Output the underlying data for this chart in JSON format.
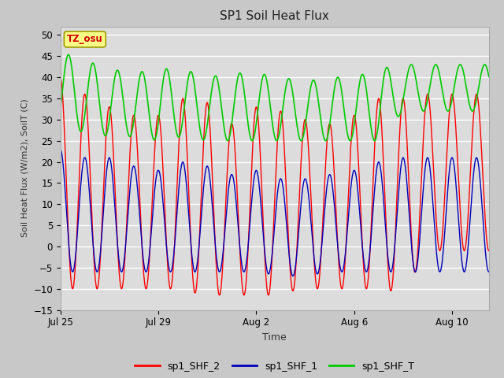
{
  "title": "SP1 Soil Heat Flux",
  "xlabel": "Time",
  "ylabel": "Soil Heat Flux (W/m2), SoilT (C)",
  "ylim": [
    -15,
    52
  ],
  "yticks": [
    -15,
    -10,
    -5,
    0,
    5,
    10,
    15,
    20,
    25,
    30,
    35,
    40,
    45,
    50
  ],
  "fig_bg": "#c8c8c8",
  "plot_bg": "#dcdcdc",
  "grid_color": "#ffffff",
  "line_colors": [
    "#ff0000",
    "#0000bb",
    "#00cc00"
  ],
  "legend_labels": [
    "sp1_SHF_2",
    "sp1_SHF_1",
    "sp1_SHF_T"
  ],
  "tz_label": "TZ_osu",
  "tz_box_facecolor": "#ffff88",
  "tz_text_color": "#cc0000",
  "tz_edge_color": "#999900",
  "tick_positions": [
    0,
    4,
    8,
    12,
    16
  ],
  "tick_labels": [
    "Jul 25",
    "Jul 29",
    "Aug 2",
    "Aug 6",
    "Aug 10"
  ],
  "total_days": 17.5,
  "period": 1.0,
  "shf2_peaks": [
    40,
    36,
    33,
    31,
    31,
    35,
    34,
    29,
    33,
    32,
    30,
    29,
    31,
    35,
    35,
    36
  ],
  "shf2_troughs": [
    -10,
    -10,
    -10,
    -10,
    -10,
    -10,
    -12,
    -11,
    -12,
    -11,
    -10,
    -10,
    -10,
    -10,
    -11,
    -1
  ],
  "shf1_peaks": [
    23,
    21,
    21,
    19,
    18,
    20,
    19,
    17,
    18,
    16,
    16,
    17,
    18,
    20,
    21
  ],
  "shf1_troughs": [
    -6,
    -6,
    -6,
    -6,
    -6,
    -6,
    -6,
    -6,
    -6,
    -7,
    -7,
    -6,
    -6,
    -6,
    -6
  ],
  "shfT_peaks": [
    46,
    44,
    42,
    41,
    42,
    42,
    40,
    41,
    41,
    40,
    39,
    40,
    40,
    42,
    43
  ],
  "shfT_troughs": [
    28,
    27,
    26,
    26,
    25,
    26,
    25,
    25,
    25,
    25,
    25,
    25,
    25,
    25,
    32
  ]
}
